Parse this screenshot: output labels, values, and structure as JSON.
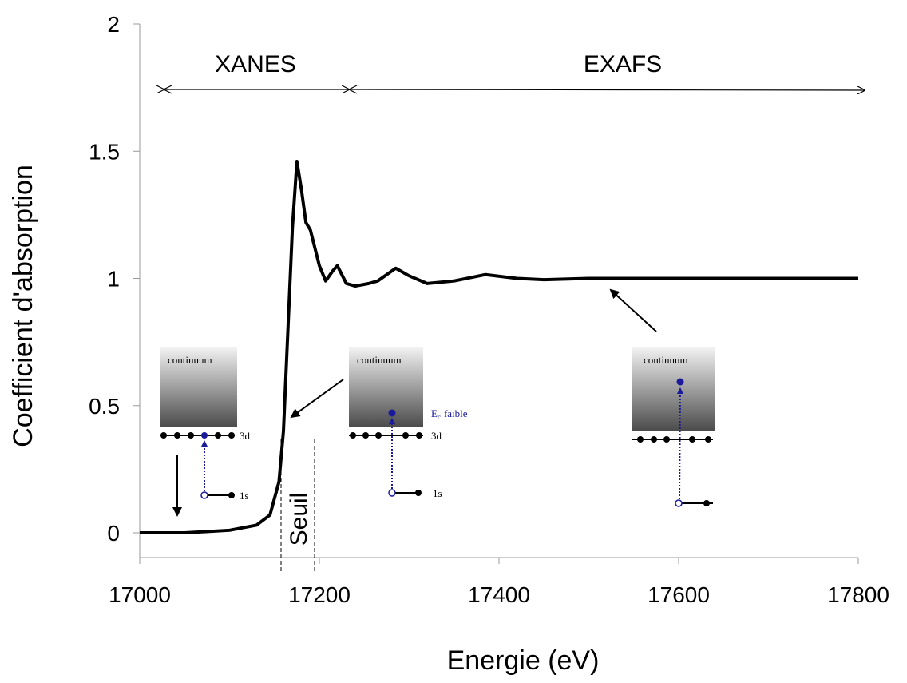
{
  "chart_data": {
    "type": "line",
    "x_label": "Energie (eV)",
    "y_label": "Coefficient d'absorption",
    "x": [
      17000,
      17050,
      17100,
      17130,
      17145,
      17155,
      17160,
      17165,
      17170,
      17175,
      17180,
      17185,
      17190,
      17200,
      17207,
      17215,
      17220,
      17230,
      17240,
      17255,
      17265,
      17285,
      17300,
      17320,
      17350,
      17385,
      17420,
      17450,
      17500,
      17600,
      17700,
      17800
    ],
    "series": [
      {
        "color": "#000000",
        "values": [
          0,
          0,
          0.01,
          0.03,
          0.07,
          0.2,
          0.4,
          0.8,
          1.2,
          1.46,
          1.35,
          1.22,
          1.19,
          1.05,
          0.99,
          1.03,
          1.05,
          0.98,
          0.97,
          0.98,
          0.99,
          1.04,
          1.01,
          0.98,
          0.99,
          1.015,
          1.0,
          0.995,
          1.0,
          1.0,
          1.0,
          1.0
        ]
      }
    ],
    "xlim": [
      17000,
      17800
    ],
    "xticks": [
      17000,
      17200,
      17400,
      17600,
      17800
    ],
    "ylim": [
      0,
      2
    ],
    "yticks": [
      0,
      0.5,
      1,
      1.5,
      2
    ],
    "annotations": {
      "regions": [
        "XANES",
        "EXAFS"
      ],
      "edge": "Seuil",
      "insets": [
        {
          "band": "continuum",
          "upper": "3d",
          "lower": "1s"
        },
        {
          "band": "continuum",
          "upper": "3d",
          "lower": "1s",
          "energy": {
            "symbol": "E",
            "subscript": "c",
            "text": "faible"
          }
        },
        {
          "band": "continuum"
        }
      ]
    }
  }
}
